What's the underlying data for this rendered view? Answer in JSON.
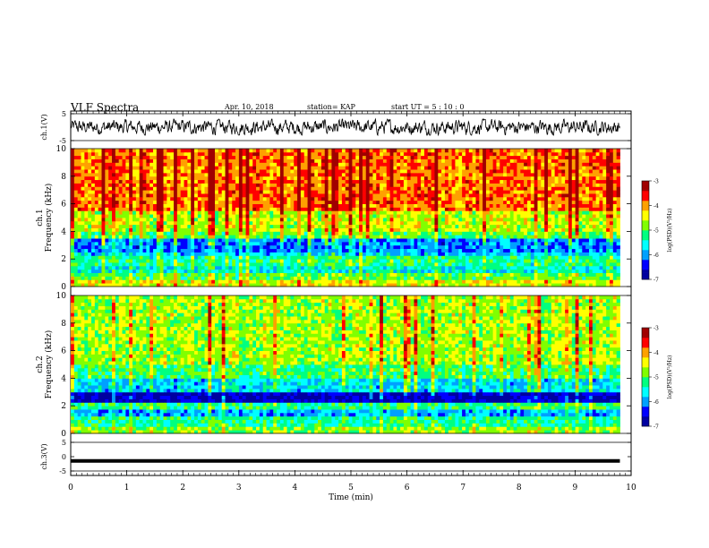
{
  "header": {
    "title": "VLF Spectra",
    "date": "Apr. 10, 2018",
    "station": "station= KAP",
    "start_ut": "start  UT  =   5  : 10 : 0"
  },
  "colors": {
    "colormap": [
      "#0000a0",
      "#0000ff",
      "#00a0ff",
      "#00ffff",
      "#00ff80",
      "#80ff00",
      "#ffff00",
      "#ffa000",
      "#ff0000",
      "#a00000",
      "#ffffff"
    ],
    "trace": "#000000"
  },
  "chart_data": [
    {
      "type": "line",
      "name": "ch1-waveform",
      "ylabel": "ch.1(V)",
      "ylim": [
        -5,
        5
      ],
      "yticks": [
        "5",
        "-5"
      ],
      "xlim": [
        0,
        10
      ],
      "x_end": 9.8,
      "baseline": 0,
      "amplitude": 2.5
    },
    {
      "type": "heatmap",
      "name": "ch1-spectrogram",
      "ylabel_top": "ch.1",
      "ylabel": "Frequency (kHz)",
      "ylim": [
        0,
        10
      ],
      "yticks": [
        "0",
        "2",
        "4",
        "6",
        "8",
        "10"
      ],
      "xlim": [
        0,
        10
      ],
      "x_end": 9.8,
      "bands": [
        {
          "f0": 0,
          "f1": 0.5,
          "level": -4.5
        },
        {
          "f0": 0.5,
          "f1": 1.0,
          "level": -5.0
        },
        {
          "f0": 1.0,
          "f1": 1.6,
          "level": -5.6
        },
        {
          "f0": 1.6,
          "f1": 2.2,
          "level": -5.3
        },
        {
          "f0": 2.2,
          "f1": 2.6,
          "level": -5.8
        },
        {
          "f0": 2.6,
          "f1": 3.4,
          "level": -6.1
        },
        {
          "f0": 3.4,
          "f1": 4.0,
          "level": -5.0
        },
        {
          "f0": 4.0,
          "f1": 5.5,
          "level": -4.6
        },
        {
          "f0": 5.5,
          "f1": 10.0,
          "level": -3.9
        }
      ],
      "colorbar": {
        "label": "log(PSD)(V²/Hz)",
        "range": [
          -7,
          -3
        ],
        "ticks": [
          "-3",
          "-4",
          "-5",
          "-6",
          "-7"
        ]
      }
    },
    {
      "type": "heatmap",
      "name": "ch2-spectrogram",
      "ylabel_top": "ch.2",
      "ylabel": "Frequency (kHz)",
      "ylim": [
        0,
        10
      ],
      "yticks": [
        "0",
        "2",
        "4",
        "6",
        "8",
        "10"
      ],
      "xlim": [
        0,
        10
      ],
      "x_end": 9.8,
      "bands": [
        {
          "f0": 0,
          "f1": 0.6,
          "level": -4.8
        },
        {
          "f0": 0.6,
          "f1": 1.2,
          "level": -5.3
        },
        {
          "f0": 1.2,
          "f1": 1.8,
          "level": -5.9
        },
        {
          "f0": 1.8,
          "f1": 2.2,
          "level": -5.2
        },
        {
          "f0": 2.2,
          "f1": 3.0,
          "level": -6.7
        },
        {
          "f0": 3.0,
          "f1": 4.0,
          "level": -5.7
        },
        {
          "f0": 4.0,
          "f1": 5.0,
          "level": -5.1
        },
        {
          "f0": 5.0,
          "f1": 10.0,
          "level": -4.7
        }
      ],
      "colorbar": {
        "label": "log(PSD)(V²/Hz)",
        "range": [
          -7,
          -3
        ],
        "ticks": [
          "-3",
          "-4",
          "-5",
          "-6",
          "-7"
        ]
      }
    },
    {
      "type": "line",
      "name": "ch3-waveform",
      "ylabel": "ch.3(V)",
      "ylim": [
        -5,
        5
      ],
      "yticks": [
        "5",
        "0",
        "-5"
      ],
      "xlim": [
        0,
        10
      ],
      "x_end": 9.8,
      "baseline": -1.5,
      "amplitude": 0
    }
  ],
  "x_axis": {
    "label": "Time (min)",
    "ticks": [
      "0",
      "1",
      "2",
      "3",
      "4",
      "5",
      "6",
      "7",
      "8",
      "9",
      "10"
    ]
  }
}
